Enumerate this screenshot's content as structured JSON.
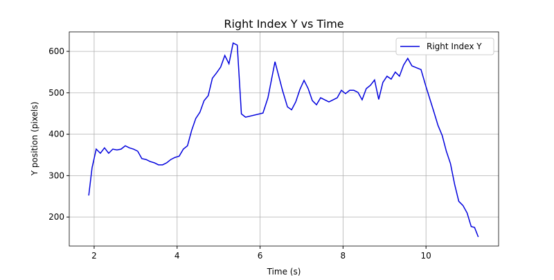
{
  "chart_data": {
    "type": "line",
    "title": "Right Index Y vs Time",
    "xlabel": "Time (s)",
    "ylabel": "Y position (pixels)",
    "x": [
      1.87,
      1.95,
      2.05,
      2.15,
      2.25,
      2.35,
      2.45,
      2.55,
      2.65,
      2.75,
      2.85,
      2.95,
      3.05,
      3.15,
      3.25,
      3.35,
      3.45,
      3.55,
      3.65,
      3.75,
      3.85,
      3.95,
      4.05,
      4.15,
      4.25,
      4.35,
      4.45,
      4.55,
      4.65,
      4.75,
      4.85,
      4.95,
      5.05,
      5.15,
      5.25,
      5.35,
      5.45,
      5.55,
      5.65,
      6.07,
      6.19,
      6.36,
      6.54,
      6.66,
      6.76,
      6.86,
      6.96,
      7.06,
      7.16,
      7.26,
      7.36,
      7.46,
      7.56,
      7.66,
      7.76,
      7.86,
      7.96,
      8.06,
      8.16,
      8.26,
      8.36,
      8.46,
      8.56,
      8.66,
      8.76,
      8.86,
      8.96,
      9.06,
      9.16,
      9.26,
      9.36,
      9.46,
      9.56,
      9.66,
      9.88,
      9.99,
      10.09,
      10.19,
      10.29,
      10.39,
      10.49,
      10.59,
      10.69,
      10.79,
      10.89,
      10.99,
      11.09,
      11.17,
      11.26
    ],
    "series": [
      {
        "name": "Right Index Y",
        "color": "#0000dd",
        "values": [
          252,
          319,
          364,
          354,
          367,
          354,
          364,
          362,
          364,
          372,
          367,
          364,
          359,
          341,
          339,
          334,
          331,
          326,
          326,
          331,
          339,
          344,
          347,
          364,
          372,
          409,
          438,
          453,
          481,
          493,
          535,
          548,
          562,
          590,
          570,
          620,
          615,
          449,
          441,
          451,
          488,
          575,
          506,
          466,
          459,
          478,
          508,
          530,
          510,
          481,
          471,
          488,
          483,
          478,
          483,
          488,
          506,
          498,
          506,
          506,
          501,
          483,
          510,
          518,
          531,
          484,
          525,
          540,
          533,
          550,
          540,
          567,
          583,
          565,
          556,
          518,
          486,
          454,
          421,
          397,
          359,
          329,
          279,
          238,
          228,
          210,
          177,
          175,
          152
        ]
      }
    ],
    "xlim": [
      1.4,
      11.75
    ],
    "xticks": [
      2,
      4,
      6,
      8,
      10
    ],
    "ylim": [
      130,
      647
    ],
    "yticks": [
      200,
      300,
      400,
      500,
      600
    ],
    "grid": true,
    "legend": "upper right"
  }
}
